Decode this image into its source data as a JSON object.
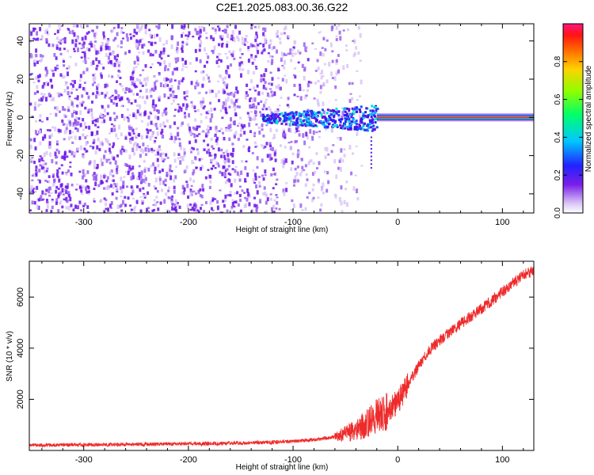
{
  "title": "C2E1.2025.083.00.36.G22",
  "colors": {
    "snr_line": "#ee2b2b",
    "spectrogram_low": "#d7c2f5",
    "spectrogram_mid": "#6a1ee0",
    "spectrogram_peak": "#ff1f5a"
  },
  "chart_data": [
    {
      "type": "heatmap",
      "name": "spectrogram",
      "xlabel": "Height of straight line (km)",
      "ylabel": "Frequency (Hz)",
      "xlim": [
        -352,
        130
      ],
      "ylim": [
        -50,
        49
      ],
      "xticks": [
        -300,
        -200,
        -100,
        0,
        100
      ],
      "yticks": [
        -40,
        -20,
        0,
        20,
        40
      ],
      "grid": false,
      "colorbar": {
        "label": "Normalized spectral amplitude",
        "range": [
          0,
          1
        ],
        "ticks": [
          0.0,
          0.2,
          0.4,
          0.6,
          0.8
        ],
        "colormap": "rainbow"
      },
      "features": [
        {
          "description": "diffuse noise",
          "x_range": [
            -352,
            -60
          ],
          "freq_range": [
            -50,
            49
          ],
          "amplitude": 0.12
        },
        {
          "description": "signal onset band",
          "x_range": [
            -130,
            -20
          ],
          "freq_range": [
            -8,
            6
          ],
          "amplitude": 0.3
        },
        {
          "description": "strong carrier line",
          "x_range": [
            -20,
            130
          ],
          "freq": 0,
          "amplitude": 0.95
        }
      ]
    },
    {
      "type": "line",
      "name": "snr",
      "xlabel": "Height of straight line (km)",
      "ylabel": "SNR (10 * v/v)",
      "xlim": [
        -352,
        130
      ],
      "ylim": [
        0,
        7400
      ],
      "xticks": [
        -300,
        -200,
        -100,
        0,
        100
      ],
      "yticks": [
        2000,
        4000,
        6000
      ],
      "grid": false,
      "series": [
        {
          "x": [
            -352,
            -300,
            -250,
            -200,
            -150,
            -120,
            -100,
            -80,
            -60,
            -50,
            -40,
            -30,
            -20,
            -10,
            0,
            10,
            20,
            30,
            40,
            50,
            60,
            70,
            80,
            90,
            100,
            110,
            120,
            130
          ],
          "values": [
            200,
            220,
            240,
            260,
            290,
            320,
            360,
            420,
            530,
            650,
            800,
            1050,
            1350,
            1500,
            1900,
            2600,
            3300,
            3900,
            4300,
            4650,
            4950,
            5250,
            5550,
            5850,
            6200,
            6550,
            6850,
            7050
          ]
        }
      ]
    }
  ]
}
